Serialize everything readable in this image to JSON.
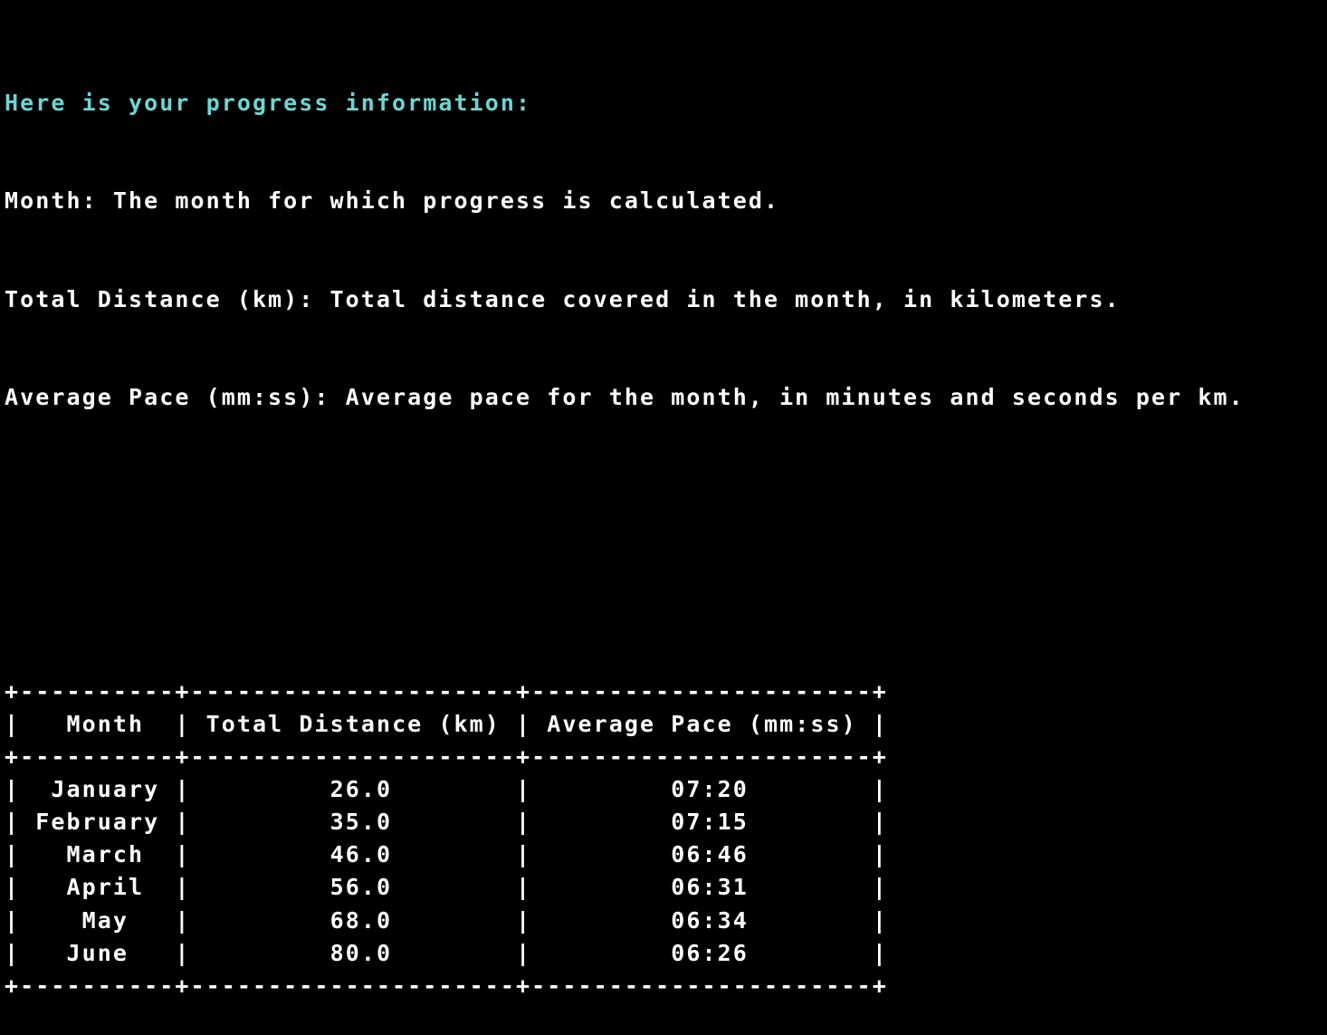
{
  "colors": {
    "background": "#000000",
    "text": "#ffffff",
    "heading": "#6fd4d2"
  },
  "intro": {
    "heading": "Here is your progress information:",
    "lines": [
      "Month: The month for which progress is calculated.",
      "Total Distance (km): Total distance covered in the month, in kilometers.",
      "Average Pace (mm:ss): Average pace for the month, in minutes and seconds per km."
    ]
  },
  "table": {
    "headers": [
      "Month",
      "Total Distance (km)",
      "Average Pace (mm:ss)"
    ],
    "rows": [
      [
        "January",
        "26.0",
        "07:20"
      ],
      [
        "February",
        "35.0",
        "07:15"
      ],
      [
        "March",
        "46.0",
        "06:46"
      ],
      [
        "April",
        "56.0",
        "06:31"
      ],
      [
        "May",
        "68.0",
        "06:34"
      ],
      [
        "June",
        "80.0",
        "06:26"
      ]
    ]
  }
}
